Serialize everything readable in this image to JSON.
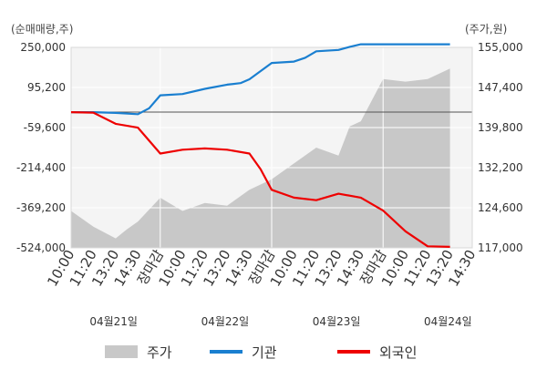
{
  "chart_data": {
    "type": "line",
    "left_axis_title": "(순매매량,주)",
    "right_axis_title": "(주가,원)",
    "left_ticks": [
      "250,000",
      "95,200",
      "-59,600",
      "-214,400",
      "-369,200",
      "-524,000"
    ],
    "right_ticks": [
      "155,000",
      "147,400",
      "139,800",
      "132,200",
      "124,600",
      "117,000"
    ],
    "ylim_left": [
      -524000,
      250000
    ],
    "ylim_right": [
      117000,
      155000
    ],
    "x_tick_labels": [
      "10:00",
      "11:20",
      "13:20",
      "14:30",
      "장마감",
      "10:00",
      "11:20",
      "13:20",
      "14:30",
      "장마감",
      "10:00",
      "11:20",
      "13:20",
      "14:30",
      "장마감",
      "10:00",
      "11:20",
      "13:20",
      "14:30"
    ],
    "close_label": "장마감",
    "days": [
      "04월21일",
      "04월22일",
      "04월23일",
      "04월24일"
    ],
    "legend": [
      {
        "name": "주가",
        "color": "#c8c8c8",
        "kind": "area"
      },
      {
        "name": "기관",
        "color": "#1a7fd0",
        "kind": "line"
      },
      {
        "name": "외국인",
        "color": "#ee0000",
        "kind": "line"
      }
    ],
    "series": [
      {
        "name": "기관",
        "axis": "left",
        "color": "#1a7fd0",
        "x": [
          0,
          1.0,
          2.0,
          3.0,
          3.5,
          4.0,
          5.0,
          6.0,
          7.0,
          7.6,
          8.0,
          9.0,
          10.0,
          10.5,
          11.0,
          12.0,
          12.5,
          13.0,
          14.0,
          15.0,
          16.0,
          17.0
        ],
        "values": [
          0,
          0,
          -3000,
          -8000,
          15000,
          65000,
          70000,
          90000,
          106000,
          112000,
          127000,
          190000,
          195000,
          210000,
          235000,
          240000,
          252000,
          262000,
          262000,
          262000,
          262000,
          262000
        ]
      },
      {
        "name": "외국인",
        "axis": "left",
        "color": "#ee0000",
        "x": [
          0,
          1.0,
          2.0,
          3.0,
          4.0,
          5.0,
          6.0,
          7.0,
          8.0,
          8.5,
          9.0,
          10.0,
          11.0,
          12.0,
          13.0,
          14.0,
          15.0,
          16.0,
          17.0
        ],
        "values": [
          0,
          -2000,
          -45000,
          -60000,
          -160000,
          -145000,
          -140000,
          -145000,
          -160000,
          -220000,
          -300000,
          -330000,
          -340000,
          -315000,
          -330000,
          -380000,
          -460000,
          -518000,
          -520000
        ]
      },
      {
        "name": "주가",
        "axis": "right",
        "color": "#c8c8c8",
        "kind": "area",
        "x": [
          0,
          1.0,
          2.0,
          2.5,
          3.0,
          4.0,
          5.0,
          6.0,
          7.0,
          8.0,
          9.0,
          10.0,
          11.0,
          12.0,
          12.5,
          13.0,
          14.0,
          15.0,
          16.0,
          17.0
        ],
        "values": [
          124000,
          121000,
          118800,
          120500,
          122000,
          126500,
          124000,
          125500,
          125000,
          128000,
          130000,
          133000,
          136000,
          134500,
          140000,
          141000,
          149000,
          148500,
          149000,
          151000
        ]
      }
    ]
  }
}
